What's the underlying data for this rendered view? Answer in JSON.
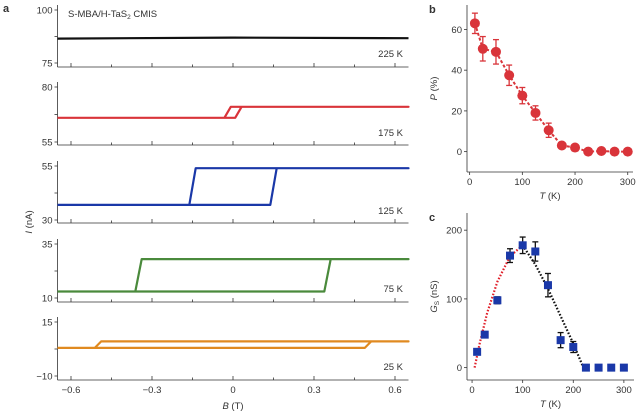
{
  "chart_data": [
    {
      "panel_label": "a",
      "type": "line",
      "annotation": "S-MBA/H-TaS",
      "annotation_sub": "2",
      "annotation_suffix": " CMIS",
      "xlabel": "B",
      "xunit": " (T)",
      "ylabel": "I",
      "yunit": " (nA)",
      "xlim": [
        -0.65,
        0.65
      ],
      "xticks": [
        -0.6,
        -0.3,
        0,
        0.3,
        0.6
      ],
      "xtick_labels": [
        "−0.6",
        "−0.3",
        "0",
        "0.3",
        "0.6"
      ],
      "subplots": [
        {
          "label": "225 K",
          "color": "#111111",
          "ylim": [
            75,
            100
          ],
          "yticks": [
            "100",
            "75"
          ],
          "low": 86.5,
          "high": 87,
          "coercive_field": 0
        },
        {
          "label": "175 K",
          "color": "#d9343a",
          "ylim": [
            55,
            80
          ],
          "yticks": [
            "80",
            "55"
          ],
          "low": 66,
          "high": 71,
          "coercive_field": 0.02
        },
        {
          "label": "125 K",
          "color": "#1a38a8",
          "ylim": [
            30,
            55
          ],
          "yticks": [
            "55",
            "30"
          ],
          "low": 37,
          "high": 54,
          "coercive_field": 0.15
        },
        {
          "label": "75 K",
          "color": "#4a8a3c",
          "ylim": [
            10,
            35
          ],
          "yticks": [
            "35",
            "10"
          ],
          "low": 13,
          "high": 28,
          "coercive_field": 0.35
        },
        {
          "label": "25 K",
          "color": "#e08a20",
          "ylim": [
            -10,
            15
          ],
          "yticks": [
            "15",
            "−10"
          ],
          "low": 3,
          "high": 6,
          "coercive_field": 0.5
        }
      ]
    },
    {
      "panel_label": "b",
      "type": "scatter",
      "color": "#d9343a",
      "xlabel": "T",
      "xunit": " (K)",
      "ylabel": "P",
      "yunit": " (%)",
      "xlim": [
        -5,
        310
      ],
      "ylim": [
        -10,
        72
      ],
      "xticks": [
        0,
        100,
        200,
        300
      ],
      "yticks": [
        0,
        20,
        40,
        60
      ],
      "x": [
        10,
        25,
        50,
        75,
        100,
        125,
        150,
        175,
        200,
        225,
        250,
        275,
        300
      ],
      "y": [
        63,
        50.5,
        49,
        37.5,
        27.5,
        19,
        10.5,
        3,
        2,
        0,
        0.3,
        0,
        0
      ],
      "yerr": [
        5,
        6,
        6,
        5,
        4,
        3.5,
        3.5,
        0,
        0,
        0,
        0,
        0,
        0
      ]
    },
    {
      "panel_label": "c",
      "type": "scatter",
      "color": "#1a38a8",
      "xlabel": "T",
      "xunit": " (K)",
      "ylabel": "G",
      "ylabel_sub": "S",
      "yunit": " (nS)",
      "xlim": [
        -10,
        320
      ],
      "ylim": [
        -18,
        225
      ],
      "xticks": [
        0,
        100,
        200,
        300
      ],
      "yticks": [
        0,
        100,
        200
      ],
      "x": [
        10,
        25,
        50,
        75,
        100,
        125,
        150,
        175,
        200,
        225,
        250,
        275,
        300
      ],
      "y": [
        23,
        48,
        98,
        163,
        178,
        169,
        120,
        40,
        30,
        0,
        0,
        0,
        0
      ],
      "yerr": [
        0,
        0,
        5,
        10,
        12,
        14,
        17,
        11,
        8,
        0,
        0,
        0,
        0
      ],
      "fits": [
        {
          "color": "#e0202a",
          "style": "dotted",
          "x": [
            5,
            15,
            30,
            50,
            75,
            100
          ],
          "y": [
            0,
            35,
            80,
            125,
            162,
            178
          ]
        },
        {
          "color": "#111111",
          "style": "dotted",
          "x": [
            100,
            125,
            150,
            175,
            200,
            220
          ],
          "y": [
            178,
            150,
            115,
            75,
            35,
            0
          ]
        }
      ]
    }
  ]
}
